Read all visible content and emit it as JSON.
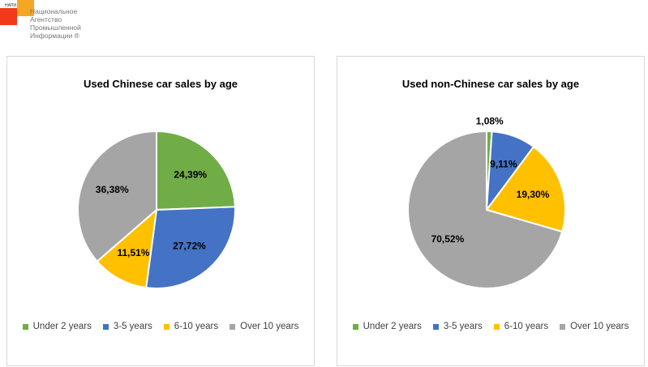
{
  "logo": {
    "abbr": "НАПИ",
    "text": "Национальное Агентство Промышленной Информации ®"
  },
  "colors": [
    "#70ad47",
    "#4472c4",
    "#ffc000",
    "#a5a5a5"
  ],
  "chart_data": [
    {
      "type": "pie",
      "title": "Used Chinese car sales by age",
      "categories": [
        "Under 2 years",
        "3-5 years",
        "6-10 years",
        "Over 10 years"
      ],
      "values": [
        24.39,
        27.72,
        11.51,
        36.38
      ],
      "labels": [
        "24,39%",
        "27,72%",
        "11,51%",
        "36,38%"
      ],
      "legend": "bottom"
    },
    {
      "type": "pie",
      "title": "Used non-Chinese car sales by age",
      "categories": [
        "Under 2 years",
        "3-5 years",
        "6-10 years",
        "Over 10 years"
      ],
      "values": [
        1.08,
        9.11,
        19.3,
        70.52
      ],
      "labels": [
        "1,08%",
        "9,11%",
        "19,30%",
        "70,52%"
      ],
      "legend": "bottom"
    }
  ]
}
